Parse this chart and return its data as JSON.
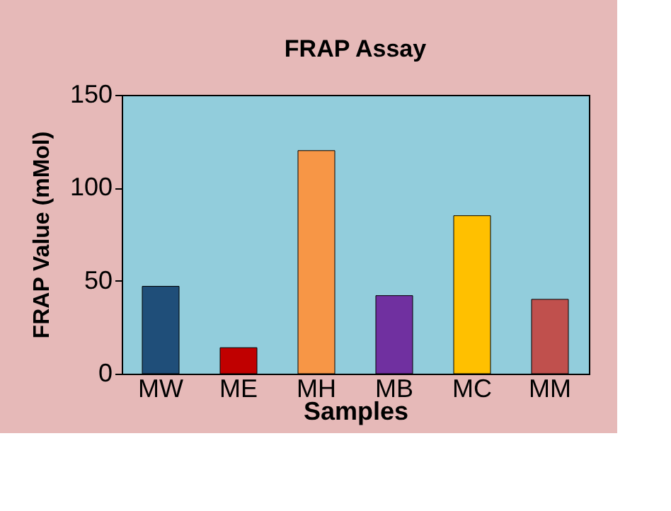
{
  "chart_data": {
    "type": "bar",
    "title": "FRAP Assay",
    "xlabel": "Samples",
    "ylabel": "FRAP Value (mMol)",
    "categories": [
      "MW",
      "ME",
      "MH",
      "MB",
      "MC",
      "MM"
    ],
    "values": [
      47,
      14,
      120,
      42,
      85,
      40
    ],
    "colors": [
      "#1f4e79",
      "#c00000",
      "#f79646",
      "#7030a0",
      "#ffc000",
      "#c0504d"
    ],
    "ylim": [
      0,
      150
    ],
    "yticks": [
      0,
      50,
      100,
      150
    ],
    "grid": false,
    "legend": false
  }
}
